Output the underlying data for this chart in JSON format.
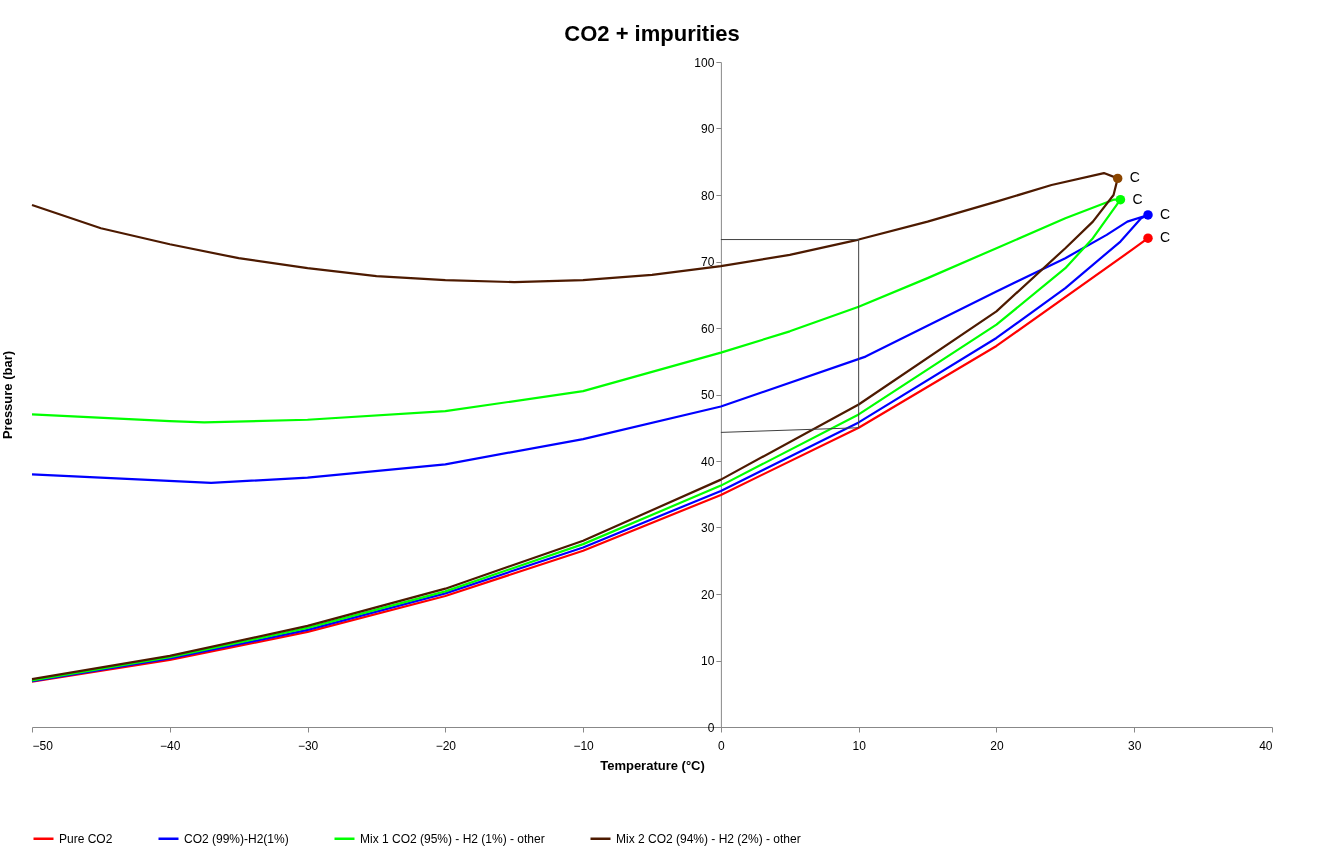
{
  "chart_data": {
    "type": "line",
    "title": "CO2 + impurities",
    "xlabel": "Temperature (°C)",
    "ylabel": "Pressure (bar)",
    "xlim": [
      -50,
      40
    ],
    "xticks": [
      -50,
      -40,
      -30,
      -20,
      -10,
      0,
      10,
      20,
      30,
      40
    ],
    "ylim": [
      0,
      100
    ],
    "yticks": [
      0,
      10,
      20,
      30,
      40,
      50,
      60,
      70,
      80,
      90,
      100
    ],
    "grid": false,
    "legend": "bottom",
    "marker": "none",
    "line_style": "solid",
    "series": [
      {
        "name": "Pure CO2",
        "color": "#ff0000",
        "x": [
          -50,
          -40,
          -30,
          -20,
          -10,
          0,
          10,
          20,
          30,
          31
        ],
        "values": [
          6.8,
          10.1,
          14.3,
          19.7,
          26.5,
          34.9,
          45,
          57.3,
          72,
          73.5
        ]
      },
      {
        "name": "CO2 (99%)-H2(1%)",
        "color": "#0000ff",
        "x": [
          -50,
          -40,
          -30,
          -20,
          -10,
          0,
          10,
          20,
          25,
          29,
          30.5,
          31,
          29.5,
          28,
          25,
          20,
          10.5,
          0,
          -10,
          -20,
          -30,
          -37,
          -50
        ],
        "values": [
          6.9,
          10.3,
          14.6,
          20.1,
          27,
          35.5,
          45.8,
          58.5,
          66,
          73,
          76.5,
          77,
          76,
          74,
          70.5,
          65.5,
          55.7,
          48.2,
          43.3,
          39.5,
          37.5,
          36.7,
          38
        ]
      },
      {
        "name": "Mix 1 CO2 (95%) - H2 (1%) - other",
        "color": "#00ff00",
        "x": [
          -50,
          -40,
          -30,
          -20,
          -10,
          0,
          10,
          20,
          25,
          27,
          29,
          28.5,
          25,
          20,
          15,
          10,
          5,
          0,
          -10,
          -20,
          -30,
          -37.5,
          -40,
          -50
        ],
        "values": [
          7,
          10.5,
          14.9,
          20.4,
          27.5,
          36.3,
          47,
          60.5,
          69,
          73.5,
          79.3,
          79.3,
          76.5,
          72,
          67.5,
          63.2,
          59.5,
          56.3,
          50.5,
          47.5,
          46.2,
          45.8,
          46,
          47
        ]
      },
      {
        "name": "Mix 2 CO2 (94%) - H2 (2%) - other",
        "color": "#4d1a00",
        "x": [
          -50,
          -40,
          -30,
          -20,
          -10,
          0,
          10,
          20,
          25,
          27,
          28.5,
          28.8,
          27.8,
          24,
          20,
          15,
          10,
          5,
          0,
          -5,
          -10,
          -15,
          -20,
          -25,
          -30,
          -35,
          -40,
          -45,
          -50
        ],
        "values": [
          7.2,
          10.7,
          15.2,
          20.8,
          28,
          37.2,
          48.5,
          62.5,
          72,
          76,
          80,
          82.5,
          83.3,
          81.5,
          79,
          76,
          73.3,
          71,
          69.3,
          68,
          67.2,
          66.9,
          67.2,
          67.8,
          69,
          70.5,
          72.6,
          75,
          78.5
        ]
      },
      {
        "type": "line",
        "color": "#404040",
        "x": [
          0,
          10,
          10,
          0
        ],
        "values": [
          73.3,
          73.3,
          45,
          44.3
        ]
      },
      {
        "type": "scatter",
        "marker": "circle",
        "color": "#ff0000",
        "x": [
          31
        ],
        "values": [
          73.5
        ]
      },
      {
        "type": "scatter",
        "marker": "circle",
        "color": "#0000ff",
        "x": [
          31
        ],
        "values": [
          77
        ]
      },
      {
        "type": "scatter",
        "marker": "circle",
        "color": "#00ff00",
        "x": [
          29
        ],
        "values": [
          79.3
        ]
      },
      {
        "type": "scatter",
        "marker": "circle",
        "color": "#8b4500",
        "x": [
          28.8
        ],
        "values": [
          82.5
        ]
      }
    ],
    "annotations": [
      {
        "text": "C",
        "x": 31,
        "y": 73.5
      },
      {
        "text": "C",
        "x": 31,
        "y": 77
      },
      {
        "text": "C",
        "x": 29,
        "y": 79.3
      },
      {
        "text": "C",
        "x": 28.8,
        "y": 82.5
      }
    ]
  }
}
